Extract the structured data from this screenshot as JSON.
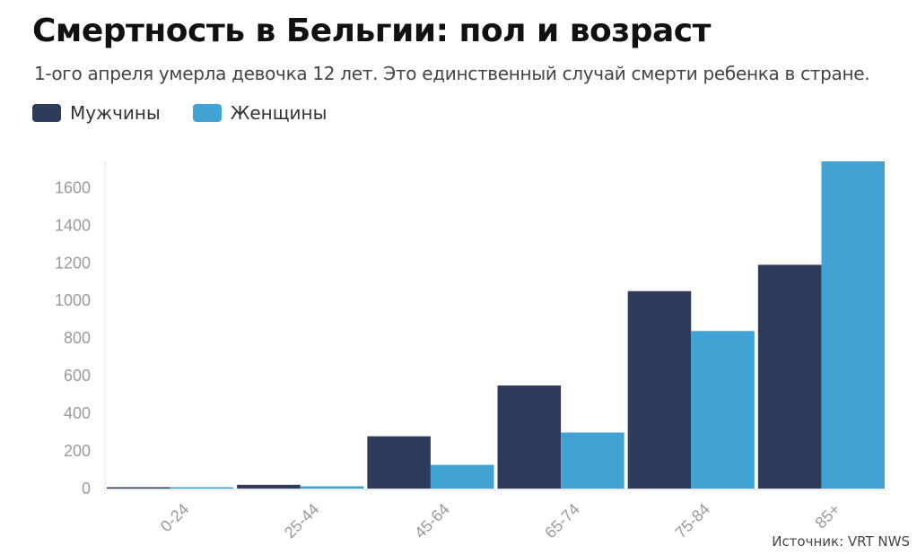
{
  "title": "Смертность в Бельгии: пол и возраст",
  "subtitle": "1-ого апреля умерла девочка 12 лет. Это единственный случай смерти ребенка в стране.",
  "source": "Источник: VRT NWS",
  "legend": [
    {
      "label": "Мужчины",
      "color": "#2e3b5a"
    },
    {
      "label": "Женщины",
      "color": "#41a3d3"
    }
  ],
  "chart_data": {
    "type": "bar",
    "categories": [
      "0-24",
      "25-44",
      "45-64",
      "65-74",
      "75-84",
      "85+"
    ],
    "series": [
      {
        "name": "Мужчины",
        "color": "#2e3b5a",
        "values": [
          0,
          20,
          278,
          548,
          1050,
          1190
        ]
      },
      {
        "name": "Женщины",
        "color": "#41a3d3",
        "values": [
          1,
          12,
          126,
          298,
          838,
          1740
        ]
      }
    ],
    "yticks": [
      0,
      200,
      400,
      600,
      800,
      1000,
      1200,
      1400,
      1600
    ],
    "ylim": [
      0,
      1740
    ],
    "xlabel": "",
    "ylabel": "",
    "grid": false,
    "legend_position": "top-left"
  }
}
